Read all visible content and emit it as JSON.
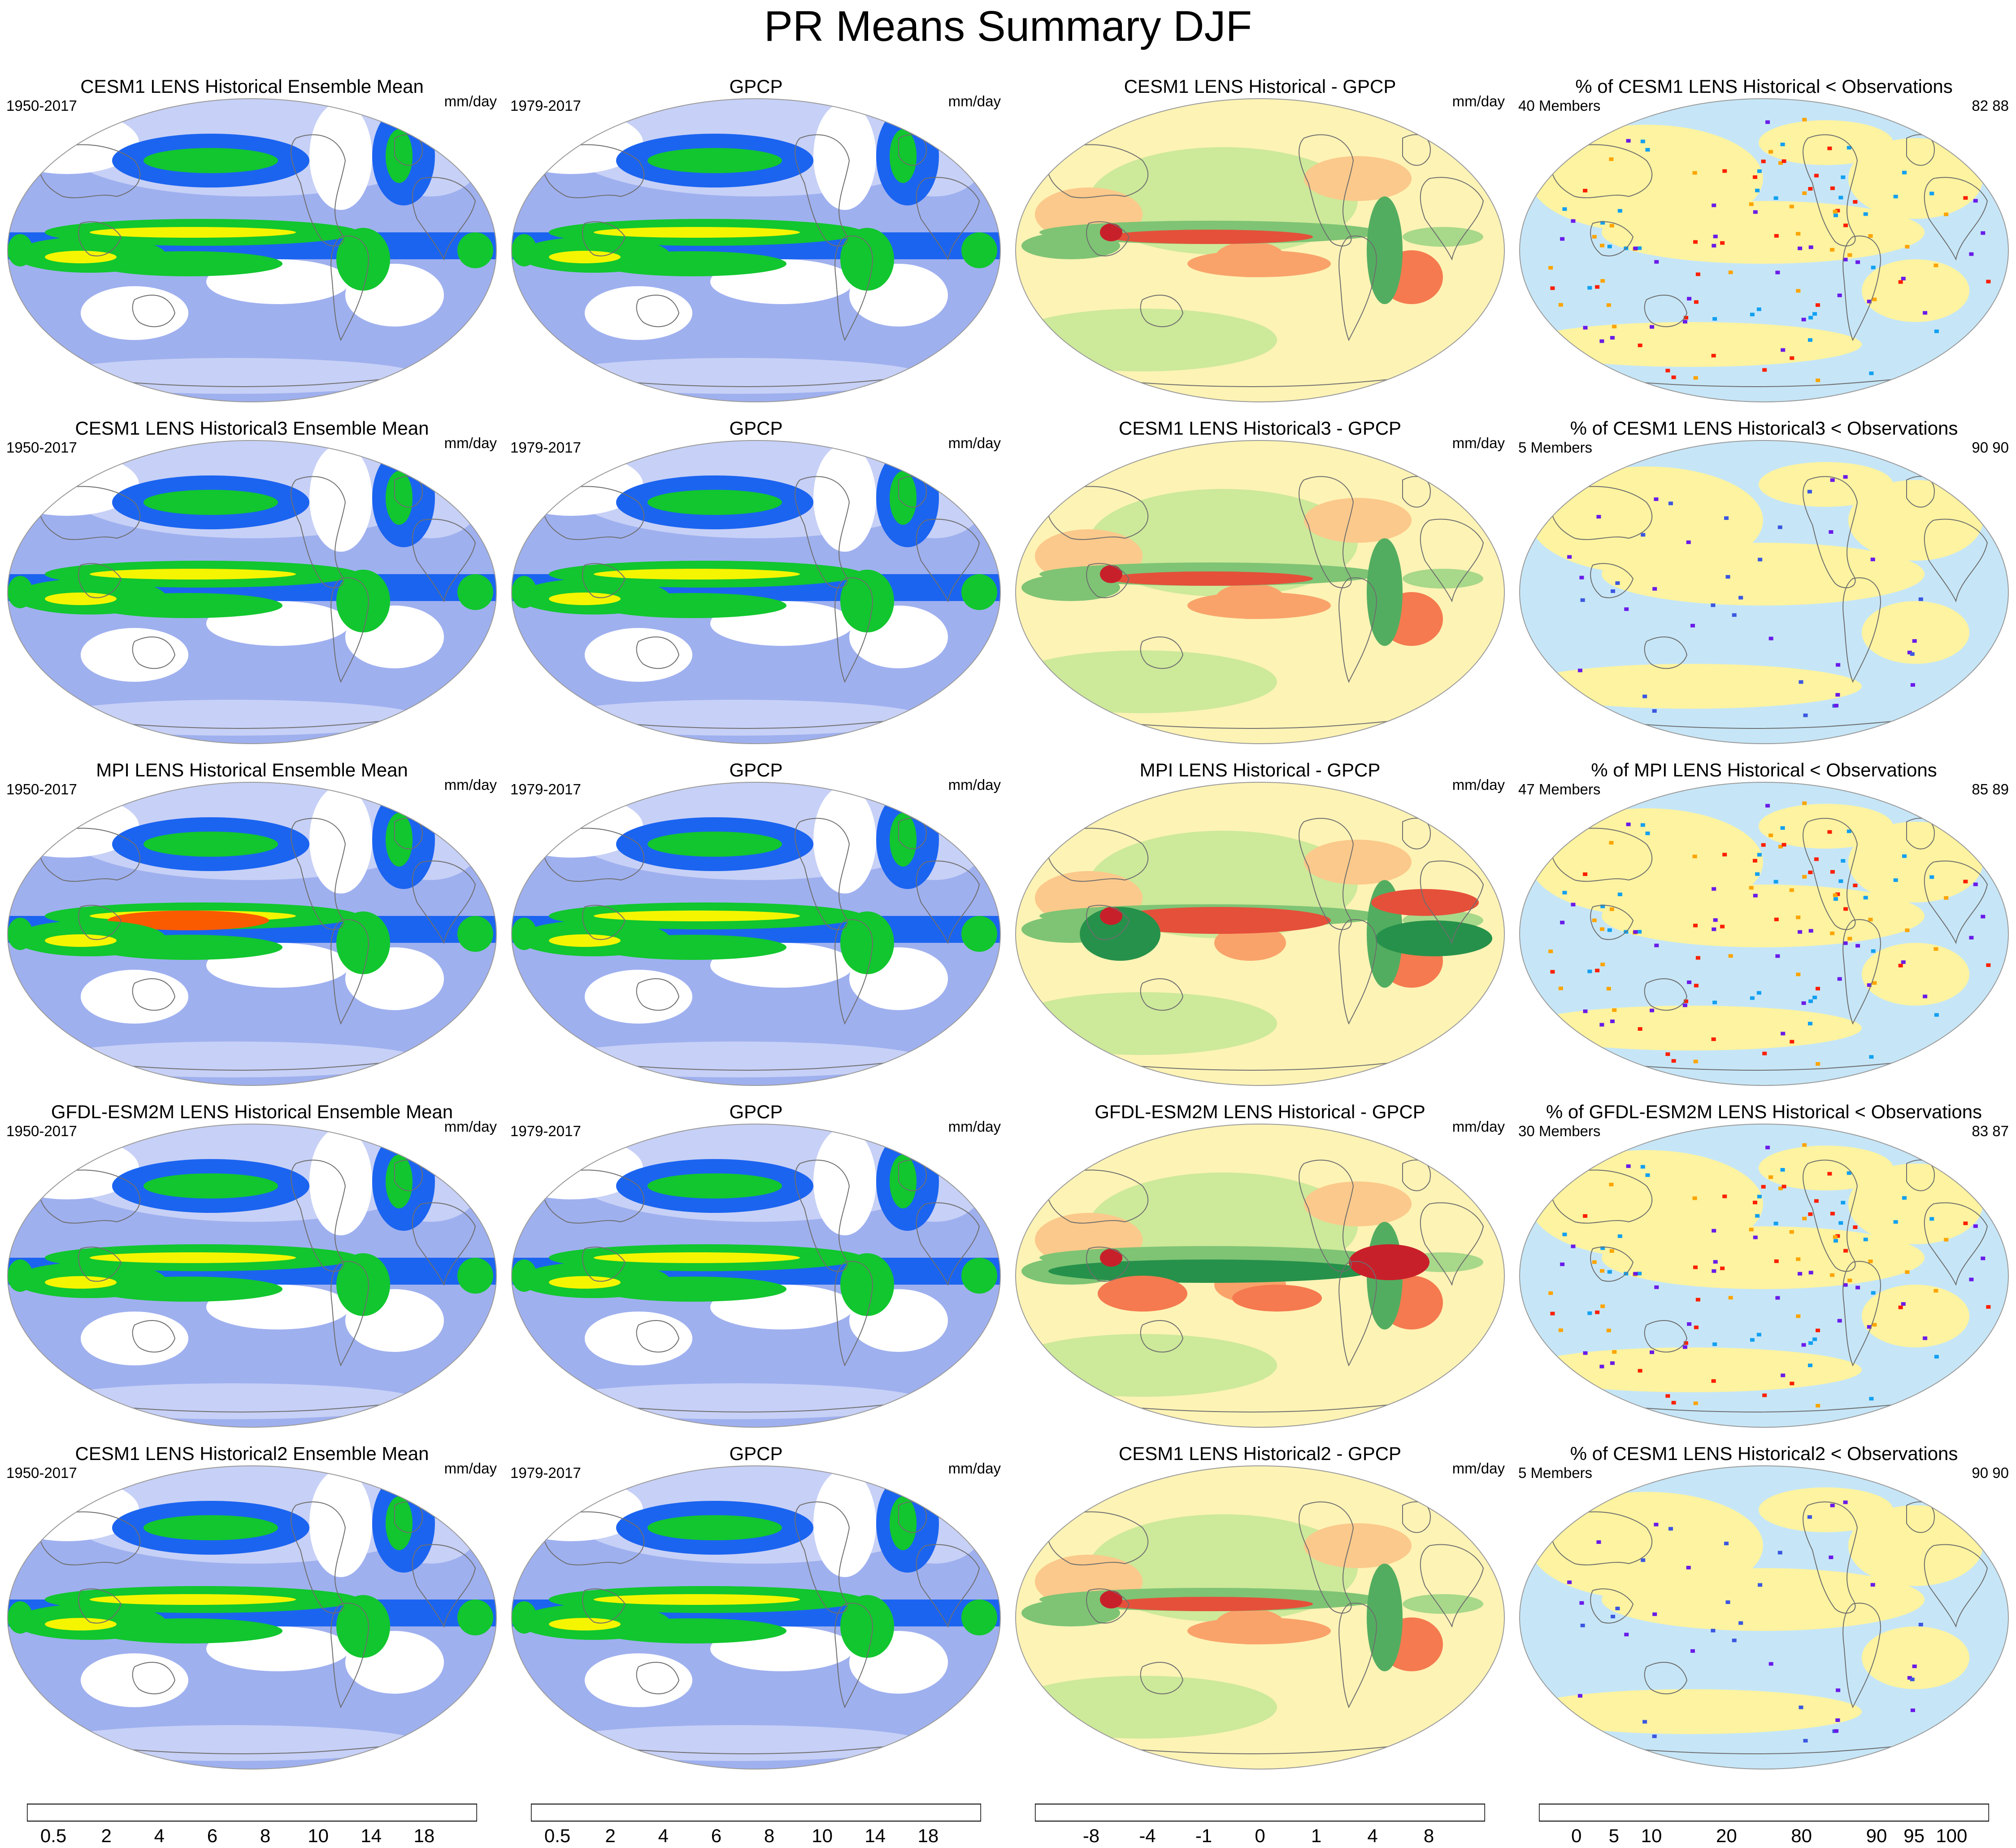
{
  "title": "PR Means Summary DJF",
  "rows": [
    {
      "model": {
        "title": "CESM1 LENS Historical Ensemble Mean",
        "years": "1950-2017",
        "units": "mm/day"
      },
      "obs": {
        "title": "GPCP",
        "years": "1979-2017",
        "units": "mm/day"
      },
      "diff": {
        "title": "CESM1 LENS Historical - GPCP",
        "units": "mm/day"
      },
      "pct": {
        "title": "% of CESM1 LENS Historical < Observations",
        "members": "40 Members",
        "stats": "82  88"
      }
    },
    {
      "model": {
        "title": "CESM1 LENS Historical3 Ensemble Mean",
        "years": "1950-2017",
        "units": "mm/day"
      },
      "obs": {
        "title": "GPCP",
        "years": "1979-2017",
        "units": "mm/day"
      },
      "diff": {
        "title": "CESM1 LENS Historical3 - GPCP",
        "units": "mm/day"
      },
      "pct": {
        "title": "% of CESM1 LENS Historical3 < Observations",
        "members": "5 Members",
        "stats": "90  90"
      }
    },
    {
      "model": {
        "title": "MPI LENS Historical Ensemble Mean",
        "years": "1950-2017",
        "units": "mm/day"
      },
      "obs": {
        "title": "GPCP",
        "years": "1979-2017",
        "units": "mm/day"
      },
      "diff": {
        "title": "MPI LENS Historical - GPCP",
        "units": "mm/day"
      },
      "pct": {
        "title": "% of MPI LENS Historical < Observations",
        "members": "47 Members",
        "stats": "85  89"
      }
    },
    {
      "model": {
        "title": "GFDL-ESM2M LENS Historical Ensemble Mean",
        "years": "1950-2017",
        "units": "mm/day"
      },
      "obs": {
        "title": "GPCP",
        "years": "1979-2017",
        "units": "mm/day"
      },
      "diff": {
        "title": "GFDL-ESM2M LENS Historical - GPCP",
        "units": "mm/day"
      },
      "pct": {
        "title": "% of GFDL-ESM2M LENS Historical < Observations",
        "members": "30 Members",
        "stats": "83  87"
      }
    },
    {
      "model": {
        "title": "CESM1 LENS Historical2 Ensemble Mean",
        "years": "1950-2017",
        "units": "mm/day"
      },
      "obs": {
        "title": "GPCP",
        "years": "1979-2017",
        "units": "mm/day"
      },
      "diff": {
        "title": "CESM1 LENS Historical2 - GPCP",
        "units": "mm/day"
      },
      "pct": {
        "title": "% of CESM1 LENS Historical2 < Observations",
        "members": "5 Members",
        "stats": "90  90"
      }
    }
  ],
  "colorbars": {
    "precip": {
      "colors": [
        "#ffffff",
        "#dde3f9",
        "#bec9f4",
        "#9eb0f0",
        "#7f94eb",
        "#5d72e6",
        "#1b64f0",
        "#0d8fa6",
        "#11c62e",
        "#7ff300",
        "#bff700",
        "#f5f500",
        "#fcd000",
        "#fbac00",
        "#fa8c00",
        "#fa5a00",
        "#f51500"
      ],
      "labels": [
        "0.5",
        "2",
        "4",
        "6",
        "8",
        "10",
        "14",
        "18"
      ],
      "label_slots": [
        1,
        3,
        5,
        7,
        9,
        11,
        13,
        15
      ]
    },
    "diff": {
      "colors": [
        "#a0001c",
        "#c8202a",
        "#e5503a",
        "#f57a4f",
        "#f9a36a",
        "#fbc98b",
        "#fbe4a6",
        "#fdf8c4",
        "#edf6b4",
        "#cde99a",
        "#a8d88a",
        "#7ec474",
        "#53ad60",
        "#26914a",
        "#0b7535",
        "#005a25"
      ],
      "labels": [
        "-8",
        "-4",
        "-1",
        "0",
        "1",
        "4",
        "8"
      ],
      "label_slots": [
        2,
        4,
        6,
        8,
        10,
        12,
        14
      ]
    },
    "pct": {
      "colors": [
        "#fdf3a0",
        "#fca400",
        "#fb1f00",
        "#e2584c",
        "#e2584c",
        "#ffffff",
        "#ffffff",
        "#6a1be8",
        "#6a1be8",
        "#3b57e0",
        "#12a0f0",
        "#c6e6f7"
      ],
      "labels": [
        "0",
        "5",
        "10",
        "20",
        "80",
        "90",
        "95",
        "100"
      ],
      "label_pos": [
        0.0833,
        0.1667,
        0.25,
        0.4167,
        0.5833,
        0.75,
        0.8333,
        0.9167
      ]
    }
  },
  "palette": {
    "land_outline": "#6e6e6e",
    "map_border": "#9a9a9a"
  }
}
